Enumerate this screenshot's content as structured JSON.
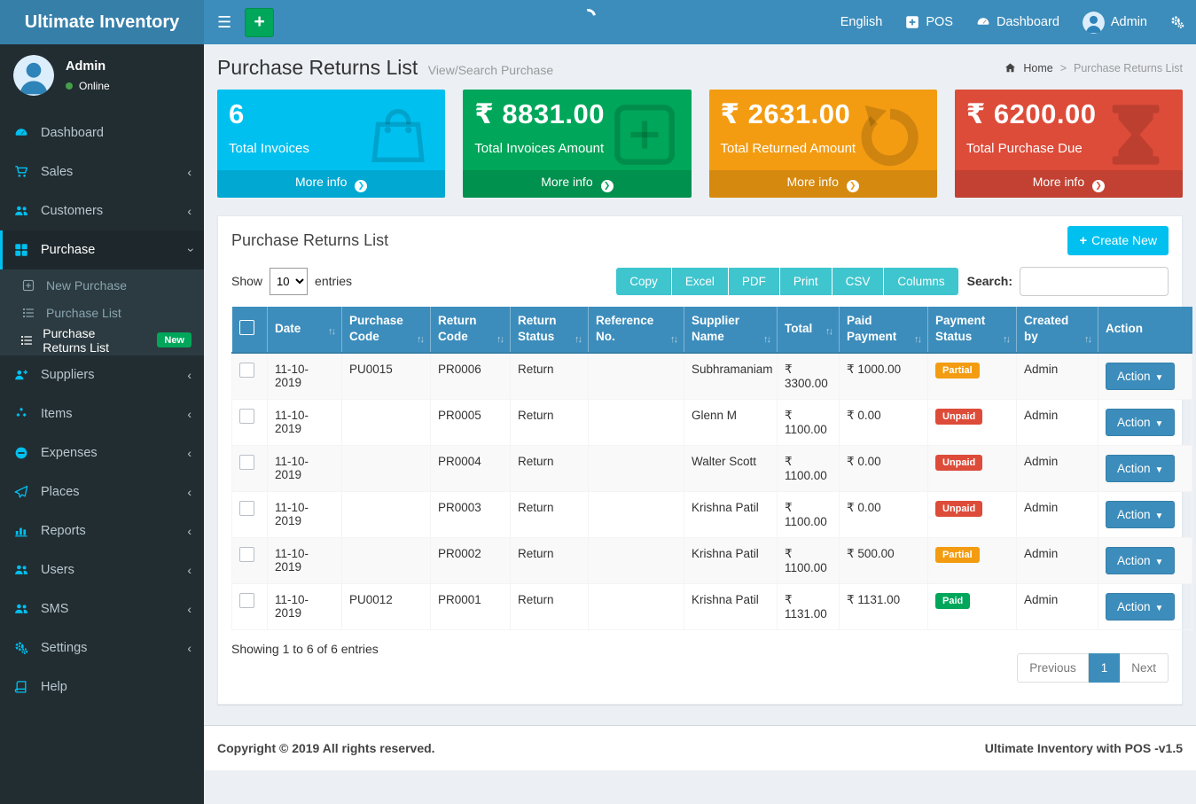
{
  "colors": {
    "navbar": "#3c8dbc",
    "brand_bg": "#367fa9",
    "sidebar": "#222d32",
    "submenu": "#2c3b41",
    "accent_cyan": "#00c0ef",
    "accent_green": "#00a65a",
    "accent_yellow": "#f39c12",
    "accent_red": "#dd4b39",
    "export_teal": "#3fc5ce",
    "online_dot": "#43a047"
  },
  "navbar": {
    "brand": "Ultimate Inventory",
    "menu_toggle_icon": "hamburger-icon",
    "quick_add_icon": "plus-icon",
    "loading_spinner": "spinner-icon",
    "language": "English",
    "pos": {
      "label": "POS",
      "icon": "plus-square-icon"
    },
    "dashboard": {
      "label": "Dashboard",
      "icon": "tachometer-icon"
    },
    "user": {
      "name": "Admin",
      "icon": "avatar"
    },
    "settings_icon": "gears-icon"
  },
  "sidebar": {
    "user": {
      "name": "Admin",
      "status": "Online",
      "avatar_icon": "avatar"
    },
    "items": [
      {
        "label": "Dashboard",
        "icon": "tachometer-icon"
      },
      {
        "label": "Sales",
        "icon": "cart-icon",
        "chevron": "left"
      },
      {
        "label": "Customers",
        "icon": "users-icon",
        "chevron": "left"
      },
      {
        "label": "Purchase",
        "icon": "grid-icon",
        "chevron": "down",
        "active": true,
        "submenu": [
          {
            "label": "New Purchase",
            "icon": "plus-square-o-icon"
          },
          {
            "label": "Purchase List",
            "icon": "list-icon"
          },
          {
            "label": "Purchase Returns List",
            "icon": "list-icon",
            "active": true,
            "badge": "New"
          }
        ]
      },
      {
        "label": "Suppliers",
        "icon": "user-plus-icon",
        "chevron": "left"
      },
      {
        "label": "Items",
        "icon": "cubes-icon",
        "chevron": "left"
      },
      {
        "label": "Expenses",
        "icon": "minus-circle-icon",
        "chevron": "left"
      },
      {
        "label": "Places",
        "icon": "paper-plane-icon",
        "chevron": "left"
      },
      {
        "label": "Reports",
        "icon": "bar-chart-icon",
        "chevron": "left"
      },
      {
        "label": "Users",
        "icon": "users-icon",
        "chevron": "left"
      },
      {
        "label": "SMS",
        "icon": "users-icon",
        "chevron": "left"
      },
      {
        "label": "Settings",
        "icon": "gears-icon",
        "chevron": "left"
      },
      {
        "label": "Help",
        "icon": "book-icon"
      }
    ]
  },
  "header": {
    "title": "Purchase Returns List",
    "subtitle": "View/Search Purchase",
    "breadcrumb": {
      "home_icon": "home-icon",
      "home": "Home",
      "separator": ">",
      "current": "Purchase Returns List"
    }
  },
  "info_boxes": [
    {
      "value": "6",
      "label": "Total Invoices",
      "more": "More info",
      "color": "#00c0ef",
      "icon": "shopping-bag-icon"
    },
    {
      "value": "₹ 8831.00",
      "label": "Total Invoices Amount",
      "more": "More info",
      "color": "#00a65a",
      "icon": "plus-square-o-icon"
    },
    {
      "value": "₹ 2631.00",
      "label": "Total Returned Amount",
      "more": "More info",
      "color": "#f39c12",
      "icon": "undo-icon"
    },
    {
      "value": "₹ 6200.00",
      "label": "Total Purchase Due",
      "more": "More info",
      "color": "#dd4b39",
      "icon": "hourglass-icon"
    }
  ],
  "panel": {
    "title": "Purchase Returns List",
    "create_new": "Create New",
    "show_label": "Show",
    "page_length": "10",
    "entries_label": "entries",
    "export_buttons": [
      "Copy",
      "Excel",
      "PDF",
      "Print",
      "CSV",
      "Columns"
    ],
    "search_label": "Search:",
    "search_value": ""
  },
  "table": {
    "columns": [
      {
        "key": "checkbox",
        "label": "",
        "sortable": false
      },
      {
        "key": "date",
        "label": "Date",
        "sortable": true
      },
      {
        "key": "purchase_code",
        "label": "Purchase Code",
        "sortable": true
      },
      {
        "key": "return_code",
        "label": "Return Code",
        "sortable": true
      },
      {
        "key": "return_status",
        "label": "Return Status",
        "sortable": true
      },
      {
        "key": "reference_no",
        "label": "Reference No.",
        "sortable": true
      },
      {
        "key": "supplier",
        "label": "Supplier Name",
        "sortable": true
      },
      {
        "key": "total",
        "label": "Total",
        "sortable": true
      },
      {
        "key": "paid",
        "label": "Paid Payment",
        "sortable": true
      },
      {
        "key": "status",
        "label": "Payment Status",
        "sortable": true
      },
      {
        "key": "created_by",
        "label": "Created by",
        "sortable": true
      },
      {
        "key": "action",
        "label": "Action",
        "sortable": false
      }
    ],
    "rows": [
      {
        "date": "11-10-2019",
        "purchase_code": "PU0015",
        "return_code": "PR0006",
        "return_status": "Return",
        "reference_no": "",
        "supplier": "Subhramaniam",
        "total": "₹ 3300.00",
        "paid": "₹ 1000.00",
        "status": "Partial",
        "status_color": "#f39c12",
        "created_by": "Admin",
        "action": "Action"
      },
      {
        "date": "11-10-2019",
        "purchase_code": "",
        "return_code": "PR0005",
        "return_status": "Return",
        "reference_no": "",
        "supplier": "Glenn M",
        "total": "₹ 1100.00",
        "paid": "₹ 0.00",
        "status": "Unpaid",
        "status_color": "#dd4b39",
        "created_by": "Admin",
        "action": "Action"
      },
      {
        "date": "11-10-2019",
        "purchase_code": "",
        "return_code": "PR0004",
        "return_status": "Return",
        "reference_no": "",
        "supplier": "Walter Scott",
        "total": "₹ 1100.00",
        "paid": "₹ 0.00",
        "status": "Unpaid",
        "status_color": "#dd4b39",
        "created_by": "Admin",
        "action": "Action"
      },
      {
        "date": "11-10-2019",
        "purchase_code": "",
        "return_code": "PR0003",
        "return_status": "Return",
        "reference_no": "",
        "supplier": "Krishna Patil",
        "total": "₹ 1100.00",
        "paid": "₹ 0.00",
        "status": "Unpaid",
        "status_color": "#dd4b39",
        "created_by": "Admin",
        "action": "Action"
      },
      {
        "date": "11-10-2019",
        "purchase_code": "",
        "return_code": "PR0002",
        "return_status": "Return",
        "reference_no": "",
        "supplier": "Krishna Patil",
        "total": "₹ 1100.00",
        "paid": "₹ 500.00",
        "status": "Partial",
        "status_color": "#f39c12",
        "created_by": "Admin",
        "action": "Action"
      },
      {
        "date": "11-10-2019",
        "purchase_code": "PU0012",
        "return_code": "PR0001",
        "return_status": "Return",
        "reference_no": "",
        "supplier": "Krishna Patil",
        "total": "₹ 1131.00",
        "paid": "₹ 1131.00",
        "status": "Paid",
        "status_color": "#00a65a",
        "created_by": "Admin",
        "action": "Action"
      }
    ],
    "summary": "Showing 1 to 6 of 6 entries",
    "pagination": {
      "previous": "Previous",
      "page": "1",
      "next": "Next"
    }
  },
  "footer": {
    "left": "Copyright © 2019 All rights reserved.",
    "right": "Ultimate Inventory with POS -v1.5"
  }
}
